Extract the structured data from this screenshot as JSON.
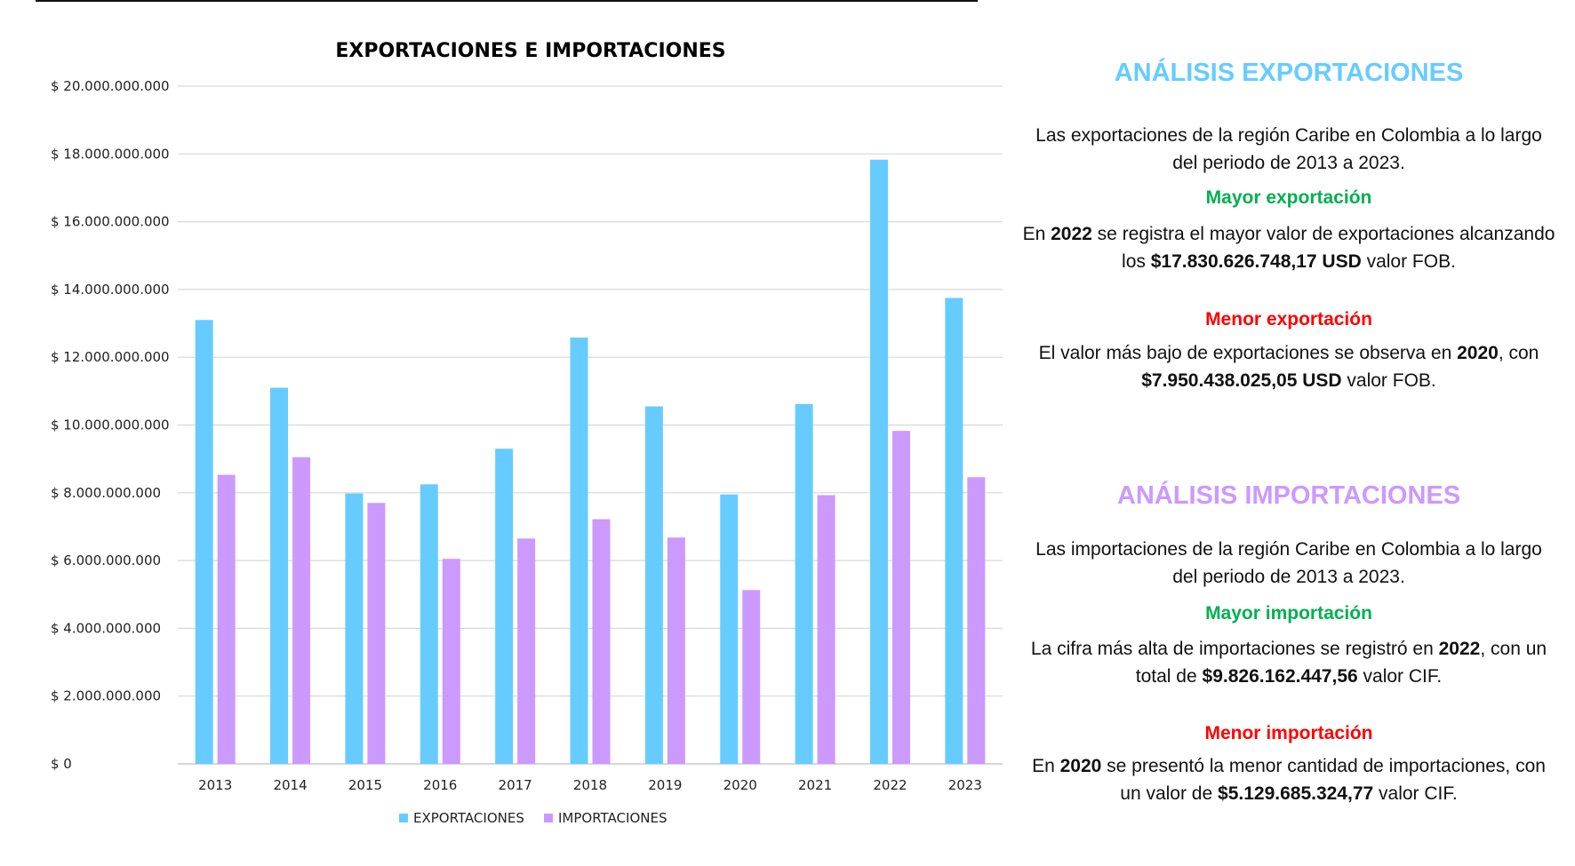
{
  "chart_data": {
    "type": "bar",
    "title": "EXPORTACIONES E IMPORTACIONES",
    "categories": [
      "2013",
      "2014",
      "2015",
      "2016",
      "2017",
      "2018",
      "2019",
      "2020",
      "2021",
      "2022",
      "2023"
    ],
    "series": [
      {
        "name": "EXPORTACIONES",
        "color": "#66ccff",
        "values": [
          13100000000,
          11100000000,
          7980000000,
          8250000000,
          9300000000,
          12580000000,
          10550000000,
          7950438025.05,
          10620000000,
          17830626748.17,
          13750000000
        ]
      },
      {
        "name": "IMPORTACIONES",
        "color": "#cc99ff",
        "values": [
          8530000000,
          9050000000,
          7700000000,
          6050000000,
          6650000000,
          7220000000,
          6680000000,
          5129685324.77,
          7930000000,
          9826162447.56,
          8460000000
        ]
      }
    ],
    "ylim": [
      0,
      20000000000
    ],
    "yticks": [
      "$ 0",
      "$ 2.000.000.000",
      "$ 4.000.000.000",
      "$ 6.000.000.000",
      "$ 8.000.000.000",
      "$ 10.000.000.000",
      "$ 12.000.000.000",
      "$ 14.000.000.000",
      "$ 16.000.000.000",
      "$ 18.000.000.000",
      "$ 20.000.000.000"
    ],
    "grid": true,
    "legend_position": "bottom"
  },
  "exports_analysis": {
    "title": "ANÁLISIS EXPORTACIONES",
    "title_color": "#66ccff",
    "intro": "Las exportaciones de la región Caribe en Colombia a lo largo del periodo de 2013 a 2023.",
    "max_heading": "Mayor exportación",
    "max_heading_color": "#00b050",
    "max_text_1": "En ",
    "max_year": "2022",
    "max_text_2": " se registra el mayor valor de exportaciones alcanzando los ",
    "max_value": "$17.830.626.748,17 USD",
    "max_text_3": " valor FOB.",
    "min_heading": "Menor exportación",
    "min_heading_color": "#ff0000",
    "min_text_1": "El valor más bajo de exportaciones se observa en ",
    "min_year": "2020",
    "min_text_2": ", con ",
    "min_value": "$7.950.438.025,05 USD",
    "min_text_3": " valor FOB."
  },
  "imports_analysis": {
    "title": "ANÁLISIS IMPORTACIONES",
    "title_color": "#cc99ff",
    "intro": "Las importaciones de la región Caribe en Colombia a lo largo del periodo de 2013 a 2023.",
    "max_heading": "Mayor importación",
    "max_heading_color": "#00b050",
    "max_text_1": "La cifra más alta de importaciones se registró en ",
    "max_year": "2022",
    "max_text_2": ", con un total de ",
    "max_value": "$9.826.162.447,56",
    "max_text_3": " valor CIF.",
    "min_heading": "Menor importación",
    "min_heading_color": "#ff0000",
    "min_text_1": "En ",
    "min_year": "2020",
    "min_text_2": " se presentó la menor cantidad de importaciones, con un valor de ",
    "min_value": "$5.129.685.324,77",
    "min_text_3": " valor CIF."
  }
}
